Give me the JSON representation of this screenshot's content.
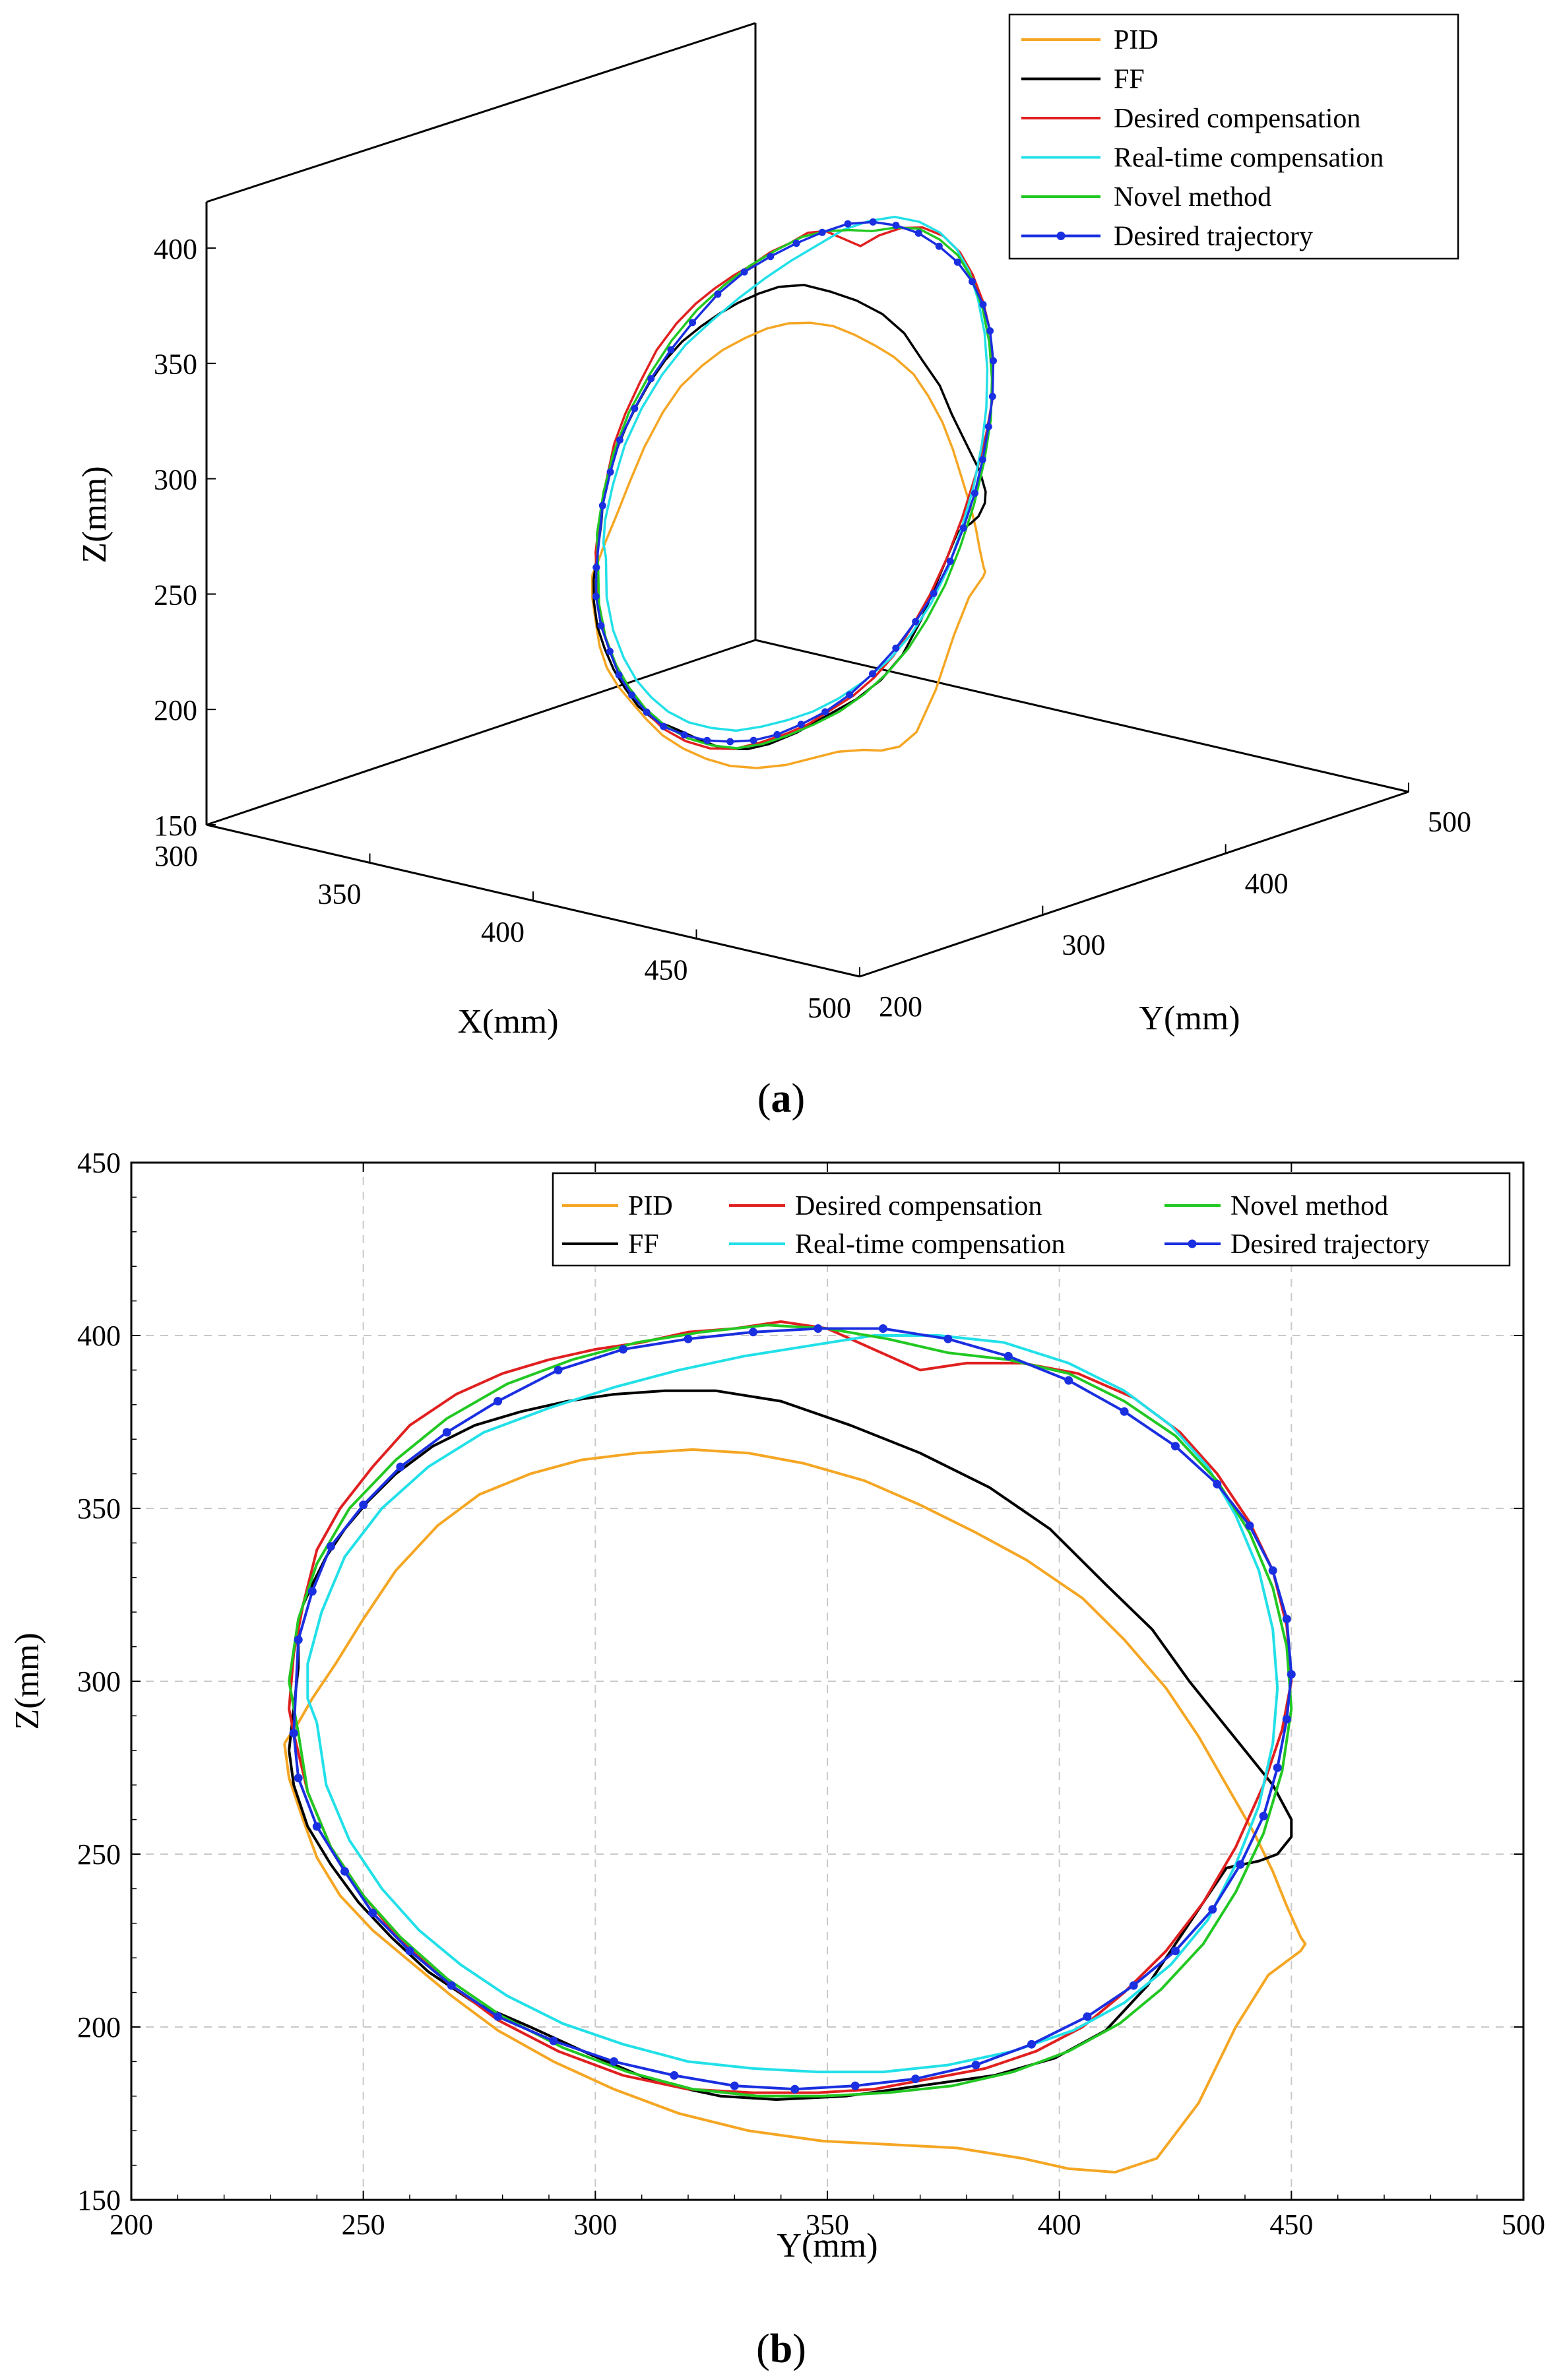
{
  "chart_data": [
    {
      "type": "line",
      "panel": "a",
      "caption": "a",
      "projection": "3d",
      "xlabel": "X(mm)",
      "ylabel": "Y(mm)",
      "zlabel": "Z(mm)",
      "xlim": [
        300,
        500
      ],
      "ylim": [
        200,
        500
      ],
      "zlim": [
        150,
        420
      ],
      "xticks": [
        "300",
        "350",
        "400",
        "450",
        "500"
      ],
      "yticks": [
        "200",
        "300",
        "400",
        "500"
      ],
      "zticks": [
        "150",
        "200",
        "250",
        "300",
        "350",
        "400"
      ],
      "legend_position": "top-right",
      "series": [
        {
          "name": "PID",
          "color": "#F5A623"
        },
        {
          "name": "FF",
          "color": "#000000"
        },
        {
          "name": "Desired compensation",
          "color": "#E02020"
        },
        {
          "name": "Real-time compensation",
          "color": "#22E0E8"
        },
        {
          "name": "Novel method",
          "color": "#22C822"
        },
        {
          "name": "Desired trajectory",
          "color": "#1A2FE0",
          "marker": "dot"
        }
      ]
    },
    {
      "type": "line",
      "panel": "b",
      "caption": "b",
      "xlabel": "Y(mm)",
      "ylabel": "Z(mm)",
      "xlim": [
        200,
        500
      ],
      "ylim": [
        150,
        450
      ],
      "xticks": [
        "200",
        "250",
        "300",
        "350",
        "400",
        "450",
        "500"
      ],
      "yticks": [
        "150",
        "200",
        "250",
        "300",
        "350",
        "400",
        "450"
      ],
      "grid": true,
      "legend_position": "top-right",
      "series": [
        {
          "name": "PID",
          "color": "#F5A623",
          "x": [
            233,
            234,
            237,
            240,
            245,
            252,
            260,
            269,
            279,
            291,
            304,
            318,
            333,
            349,
            364,
            378,
            392,
            402,
            412,
            421,
            430,
            438,
            445,
            450,
            452,
            453,
            452,
            449,
            446,
            442,
            436,
            430,
            423,
            414,
            405,
            393,
            382,
            370,
            358,
            345,
            333,
            321,
            309,
            297,
            286,
            275,
            266,
            257,
            250,
            244,
            239,
            236,
            234,
            233
          ],
          "y": [
            282,
            272,
            260,
            249,
            238,
            228,
            219,
            209,
            199,
            190,
            182,
            175,
            170,
            167,
            166,
            165,
            162,
            159,
            158,
            162,
            178,
            200,
            215,
            220,
            222,
            224,
            226,
            235,
            245,
            256,
            270,
            284,
            298,
            312,
            324,
            335,
            343,
            351,
            358,
            363,
            366,
            367,
            366,
            364,
            360,
            354,
            345,
            332,
            318,
            305,
            295,
            288,
            284,
            282
          ]
        },
        {
          "name": "FF",
          "color": "#000000",
          "x": [
            234,
            235,
            238,
            243,
            249,
            256,
            264,
            274,
            286,
            299,
            313,
            327,
            339,
            354,
            370,
            386,
            399,
            410,
            419,
            428,
            436,
            443,
            447,
            450,
            450,
            446,
            437,
            428,
            420,
            410,
            398,
            385,
            370,
            355,
            340,
            326,
            315,
            304,
            294,
            284,
            274,
            265,
            257,
            251,
            246,
            242,
            239,
            237,
            236,
            236,
            235,
            234
          ],
          "y": [
            280,
            270,
            258,
            247,
            236,
            226,
            216,
            207,
            200,
            192,
            184,
            180,
            179,
            180,
            183,
            186,
            191,
            199,
            212,
            230,
            246,
            248,
            250,
            255,
            260,
            270,
            285,
            300,
            315,
            328,
            344,
            356,
            366,
            374,
            381,
            384,
            384,
            383,
            381,
            378,
            374,
            368,
            360,
            352,
            344,
            336,
            328,
            322,
            316,
            304,
            292,
            280
          ]
        },
        {
          "name": "Desired compensation",
          "color": "#E02020",
          "x": [
            235,
            238,
            243,
            250,
            258,
            268,
            279,
            292,
            306,
            320,
            334,
            348,
            360,
            372,
            384,
            395,
            405,
            414,
            423,
            431,
            438,
            444,
            448,
            450,
            449,
            446,
            441,
            434,
            426,
            416,
            404,
            392,
            380,
            370,
            360,
            350,
            340,
            330,
            320,
            310,
            300,
            290,
            280,
            270,
            260,
            252,
            245,
            240,
            237,
            235,
            234,
            235
          ],
          "y": [
            285,
            268,
            252,
            238,
            225,
            213,
            202,
            193,
            186,
            182,
            181,
            181,
            182,
            185,
            188,
            193,
            200,
            210,
            222,
            236,
            252,
            270,
            286,
            300,
            316,
            332,
            346,
            360,
            372,
            382,
            389,
            392,
            392,
            390,
            396,
            402,
            404,
            402,
            401,
            398,
            396,
            393,
            389,
            383,
            374,
            362,
            350,
            338,
            322,
            308,
            292,
            285
          ]
        },
        {
          "name": "Real-time compensation",
          "color": "#22E0E8",
          "x": [
            240,
            242,
            247,
            254,
            262,
            271,
            281,
            293,
            306,
            320,
            334,
            348,
            362,
            376,
            390,
            403,
            414,
            424,
            432,
            438,
            443,
            446,
            447,
            446,
            443,
            438,
            432,
            424,
            414,
            402,
            388,
            374,
            360,
            346,
            332,
            318,
            304,
            290,
            276,
            264,
            254,
            246,
            241,
            238,
            238,
            240
          ],
          "y": [
            288,
            270,
            254,
            240,
            228,
            218,
            209,
            201,
            195,
            190,
            188,
            187,
            187,
            189,
            193,
            199,
            207,
            218,
            231,
            247,
            264,
            282,
            298,
            315,
            332,
            348,
            362,
            374,
            384,
            392,
            398,
            400,
            400,
            397,
            394,
            390,
            385,
            379,
            372,
            362,
            350,
            336,
            320,
            305,
            295,
            288
          ]
        },
        {
          "name": "Novel method",
          "color": "#22C822",
          "x": [
            236,
            238,
            243,
            250,
            258,
            268,
            280,
            293,
            307,
            321,
            335,
            349,
            363,
            377,
            390,
            402,
            413,
            422,
            431,
            438,
            444,
            448,
            450,
            449,
            446,
            441,
            434,
            425,
            414,
            402,
            389,
            376,
            363,
            350,
            337,
            323,
            309,
            295,
            281,
            268,
            257,
            247,
            240,
            236,
            234,
            236
          ],
          "y": [
            285,
            268,
            252,
            238,
            226,
            214,
            203,
            194,
            187,
            182,
            180,
            180,
            181,
            183,
            187,
            193,
            201,
            211,
            224,
            239,
            256,
            274,
            292,
            310,
            327,
            343,
            358,
            371,
            381,
            389,
            393,
            395,
            399,
            402,
            403,
            401,
            398,
            393,
            386,
            376,
            364,
            350,
            334,
            318,
            300,
            285
          ]
        },
        {
          "name": "Desired trajectory",
          "color": "#1A2FE0",
          "marker": "dot",
          "x": [
            235,
            236,
            240,
            246,
            252,
            260,
            269,
            279,
            291,
            304,
            317,
            330,
            343,
            356,
            369,
            382,
            394,
            406,
            416,
            425,
            433,
            439,
            444,
            447,
            449,
            450,
            449,
            446,
            441,
            434,
            425,
            414,
            402,
            389,
            376,
            362,
            348,
            334,
            320,
            306,
            292,
            279,
            268,
            258,
            250,
            243,
            239,
            236,
            235
          ],
          "y": [
            285,
            272,
            258,
            245,
            233,
            222,
            212,
            203,
            196,
            190,
            186,
            183,
            182,
            183,
            185,
            189,
            195,
            203,
            212,
            222,
            234,
            247,
            261,
            275,
            289,
            302,
            318,
            332,
            345,
            357,
            368,
            378,
            387,
            394,
            399,
            402,
            402,
            401,
            399,
            396,
            390,
            381,
            372,
            362,
            351,
            339,
            326,
            312,
            285
          ]
        }
      ]
    }
  ]
}
